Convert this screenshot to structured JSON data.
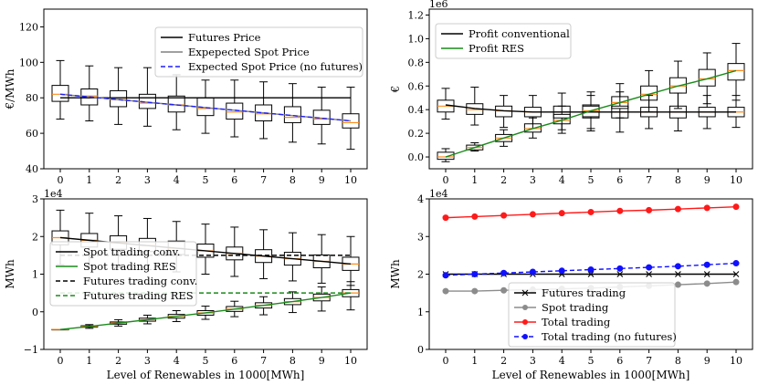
{
  "figure_xlabel": "Level of Renewables in 1000[MWh]",
  "chart_data": [
    {
      "id": "prices",
      "type": "line+box",
      "ylabel": "€/MWh",
      "exponent": "",
      "ylim": [
        40,
        130
      ],
      "yticks": [
        40,
        60,
        80,
        100,
        120
      ],
      "ytick_labels": [
        "40",
        "60",
        "80",
        "100",
        "120"
      ],
      "x": [
        0,
        1,
        2,
        3,
        4,
        5,
        6,
        7,
        8,
        9,
        10
      ],
      "legend_pos": "top-right",
      "series": [
        {
          "name": "Futures Price",
          "color": "#000000",
          "style": "solid",
          "values": [
            80,
            80,
            80,
            80,
            80,
            80,
            80,
            80,
            80,
            80,
            80
          ]
        },
        {
          "name": "Expepected Spot Price",
          "color": "#808080",
          "style": "solid",
          "values": [
            82,
            80.5,
            79,
            77.5,
            76,
            74.5,
            73,
            71.5,
            70,
            68.5,
            67
          ]
        },
        {
          "name": "Expected Spot Price (no futures)",
          "color": "#1f1fff",
          "style": "dashed",
          "values": [
            82,
            80.5,
            79,
            77.5,
            76,
            74.5,
            73,
            71.5,
            70,
            68.5,
            67
          ]
        }
      ],
      "boxes": [
        {
          "x": 0,
          "lw": 68,
          "q1": 78,
          "med": 82,
          "q3": 87,
          "uw": 101
        },
        {
          "x": 1,
          "lw": 67,
          "q1": 76,
          "med": 81,
          "q3": 85,
          "uw": 98
        },
        {
          "x": 2,
          "lw": 65,
          "q1": 75,
          "med": 79,
          "q3": 84,
          "uw": 97
        },
        {
          "x": 3,
          "lw": 64,
          "q1": 74,
          "med": 77,
          "q3": 82,
          "uw": 97
        },
        {
          "x": 4,
          "lw": 62,
          "q1": 72,
          "med": 76,
          "q3": 81,
          "uw": 93
        },
        {
          "x": 5,
          "lw": 60,
          "q1": 70,
          "med": 74,
          "q3": 80,
          "uw": 90
        },
        {
          "x": 6,
          "lw": 58,
          "q1": 68,
          "med": 72,
          "q3": 77,
          "uw": 90
        },
        {
          "x": 7,
          "lw": 57,
          "q1": 67,
          "med": 71,
          "q3": 76,
          "uw": 89
        },
        {
          "x": 8,
          "lw": 55,
          "q1": 66,
          "med": 69,
          "q3": 75,
          "uw": 88
        },
        {
          "x": 9,
          "lw": 54,
          "q1": 65,
          "med": 68,
          "q3": 73,
          "uw": 86
        },
        {
          "x": 10,
          "lw": 51,
          "q1": 63,
          "med": 66,
          "q3": 71,
          "uw": 86
        }
      ]
    },
    {
      "id": "profit",
      "type": "line+box",
      "ylabel": "€",
      "exponent": "1e6",
      "ylim": [
        -0.1,
        1.25
      ],
      "yticks": [
        0,
        0.2,
        0.4,
        0.6,
        0.8,
        1.0,
        1.2
      ],
      "ytick_labels": [
        "0.0",
        "0.2",
        "0.4",
        "0.6",
        "0.8",
        "1.0",
        "1.2"
      ],
      "x": [
        0,
        1,
        2,
        3,
        4,
        5,
        6,
        7,
        8,
        9,
        10
      ],
      "legend_pos": "top-left",
      "series": [
        {
          "name": "Profit conventional",
          "color": "#000000",
          "style": "solid",
          "values": [
            0.44,
            0.41,
            0.39,
            0.38,
            0.38,
            0.38,
            0.38,
            0.38,
            0.38,
            0.38,
            0.38
          ]
        },
        {
          "name": "Profit RES",
          "color": "#1a8a1a",
          "style": "solid",
          "values": [
            0.0,
            0.08,
            0.16,
            0.24,
            0.31,
            0.39,
            0.46,
            0.53,
            0.6,
            0.66,
            0.73
          ]
        }
      ],
      "boxes": [
        {
          "x": 0,
          "lw": 0.32,
          "q1": 0.38,
          "med": 0.43,
          "q3": 0.48,
          "uw": 0.58
        },
        {
          "x": 1,
          "lw": 0.27,
          "q1": 0.36,
          "med": 0.4,
          "q3": 0.45,
          "uw": 0.59
        },
        {
          "x": 2,
          "lw": 0.25,
          "q1": 0.34,
          "med": 0.39,
          "q3": 0.43,
          "uw": 0.52
        },
        {
          "x": 3,
          "lw": 0.24,
          "q1": 0.34,
          "med": 0.38,
          "q3": 0.42,
          "uw": 0.52
        },
        {
          "x": 4,
          "lw": 0.23,
          "q1": 0.33,
          "med": 0.38,
          "q3": 0.43,
          "uw": 0.54
        },
        {
          "x": 5,
          "lw": 0.22,
          "q1": 0.33,
          "med": 0.38,
          "q3": 0.43,
          "uw": 0.55
        },
        {
          "x": 6,
          "lw": 0.21,
          "q1": 0.33,
          "med": 0.38,
          "q3": 0.43,
          "uw": 0.55
        },
        {
          "x": 7,
          "lw": 0.24,
          "q1": 0.34,
          "med": 0.38,
          "q3": 0.42,
          "uw": 0.52
        },
        {
          "x": 8,
          "lw": 0.22,
          "q1": 0.33,
          "med": 0.38,
          "q3": 0.43,
          "uw": 0.54
        },
        {
          "x": 9,
          "lw": 0.24,
          "q1": 0.34,
          "med": 0.38,
          "q3": 0.42,
          "uw": 0.52
        },
        {
          "x": 10,
          "lw": 0.25,
          "q1": 0.34,
          "med": 0.38,
          "q3": 0.42,
          "uw": 0.52
        },
        {
          "x": 0,
          "lw": -0.04,
          "q1": -0.02,
          "med": 0.0,
          "q3": 0.04,
          "uw": 0.07
        },
        {
          "x": 1,
          "lw": 0.05,
          "q1": 0.06,
          "med": 0.08,
          "q3": 0.1,
          "uw": 0.12
        },
        {
          "x": 2,
          "lw": 0.09,
          "q1": 0.13,
          "med": 0.16,
          "q3": 0.19,
          "uw": 0.23
        },
        {
          "x": 3,
          "lw": 0.16,
          "q1": 0.21,
          "med": 0.24,
          "q3": 0.28,
          "uw": 0.33
        },
        {
          "x": 4,
          "lw": 0.2,
          "q1": 0.28,
          "med": 0.31,
          "q3": 0.36,
          "uw": 0.43
        },
        {
          "x": 5,
          "lw": 0.24,
          "q1": 0.34,
          "med": 0.39,
          "q3": 0.44,
          "uw": 0.52
        },
        {
          "x": 6,
          "lw": 0.33,
          "q1": 0.41,
          "med": 0.46,
          "q3": 0.51,
          "uw": 0.62
        },
        {
          "x": 7,
          "lw": 0.38,
          "q1": 0.48,
          "med": 0.53,
          "q3": 0.6,
          "uw": 0.73
        },
        {
          "x": 8,
          "lw": 0.41,
          "q1": 0.54,
          "med": 0.6,
          "q3": 0.67,
          "uw": 0.81
        },
        {
          "x": 9,
          "lw": 0.45,
          "q1": 0.6,
          "med": 0.66,
          "q3": 0.74,
          "uw": 0.88
        },
        {
          "x": 10,
          "lw": 0.48,
          "q1": 0.65,
          "med": 0.73,
          "q3": 0.79,
          "uw": 0.96
        }
      ]
    },
    {
      "id": "trading",
      "type": "line+box",
      "ylabel": "MWh",
      "exponent": "1e4",
      "ylim": [
        -1,
        3
      ],
      "yticks": [
        -1,
        0,
        1,
        2,
        3
      ],
      "ytick_labels": [
        "−1",
        "0",
        "1",
        "2",
        "3"
      ],
      "x": [
        0,
        1,
        2,
        3,
        4,
        5,
        6,
        7,
        8,
        9,
        10
      ],
      "legend_pos": "center-left",
      "series": [
        {
          "name": "Spot trading conv.",
          "color": "#000000",
          "style": "solid",
          "values": [
            1.97,
            1.9,
            1.83,
            1.76,
            1.69,
            1.62,
            1.55,
            1.48,
            1.41,
            1.34,
            1.27
          ]
        },
        {
          "name": "Spot trading RES",
          "color": "#1a8a1a",
          "style": "solid",
          "values": [
            -0.47,
            -0.39,
            -0.3,
            -0.21,
            -0.12,
            -0.03,
            0.07,
            0.17,
            0.27,
            0.38,
            0.5
          ]
        },
        {
          "name": "Futures trading conv.",
          "color": "#000000",
          "style": "dashed",
          "values": [
            1.5,
            1.5,
            1.5,
            1.5,
            1.5,
            1.5,
            1.5,
            1.5,
            1.5,
            1.5,
            1.5
          ]
        },
        {
          "name": "Futures trading RES",
          "color": "#1a8a1a",
          "style": "dashed",
          "values": [
            0.5,
            0.5,
            0.5,
            0.5,
            0.5,
            0.5,
            0.5,
            0.5,
            0.5,
            0.5,
            0.5
          ]
        }
      ],
      "boxes": [
        {
          "x": 0,
          "lw": 1.25,
          "q1": 1.78,
          "med": 1.97,
          "q3": 2.15,
          "uw": 2.7
        },
        {
          "x": 1,
          "lw": 1.22,
          "q1": 1.72,
          "med": 1.9,
          "q3": 2.08,
          "uw": 2.62
        },
        {
          "x": 2,
          "lw": 1.18,
          "q1": 1.66,
          "med": 1.83,
          "q3": 2.02,
          "uw": 2.55
        },
        {
          "x": 3,
          "lw": 1.12,
          "q1": 1.6,
          "med": 1.76,
          "q3": 1.95,
          "uw": 2.48
        },
        {
          "x": 4,
          "lw": 1.06,
          "q1": 1.52,
          "med": 1.69,
          "q3": 1.88,
          "uw": 2.4
        },
        {
          "x": 5,
          "lw": 1.0,
          "q1": 1.45,
          "med": 1.62,
          "q3": 1.8,
          "uw": 2.33
        },
        {
          "x": 6,
          "lw": 0.94,
          "q1": 1.38,
          "med": 1.55,
          "q3": 1.72,
          "uw": 2.25
        },
        {
          "x": 7,
          "lw": 0.88,
          "q1": 1.31,
          "med": 1.48,
          "q3": 1.65,
          "uw": 2.18
        },
        {
          "x": 8,
          "lw": 0.82,
          "q1": 1.24,
          "med": 1.41,
          "q3": 1.58,
          "uw": 2.1
        },
        {
          "x": 9,
          "lw": 0.76,
          "q1": 1.17,
          "med": 1.34,
          "q3": 1.51,
          "uw": 2.05
        },
        {
          "x": 10,
          "lw": 0.7,
          "q1": 1.1,
          "med": 1.27,
          "q3": 1.45,
          "uw": 2.0
        },
        {
          "x": 0,
          "lw": -0.47,
          "q1": -0.47,
          "med": -0.47,
          "q3": -0.47,
          "uw": -0.47
        },
        {
          "x": 1,
          "lw": -0.44,
          "q1": -0.41,
          "med": -0.39,
          "q3": -0.37,
          "uw": -0.34
        },
        {
          "x": 2,
          "lw": -0.38,
          "q1": -0.33,
          "med": -0.3,
          "q3": -0.27,
          "uw": -0.21
        },
        {
          "x": 3,
          "lw": -0.32,
          "q1": -0.25,
          "med": -0.21,
          "q3": -0.17,
          "uw": -0.09
        },
        {
          "x": 4,
          "lw": -0.26,
          "q1": -0.17,
          "med": -0.12,
          "q3": -0.07,
          "uw": 0.03
        },
        {
          "x": 5,
          "lw": -0.2,
          "q1": -0.09,
          "med": -0.03,
          "q3": 0.03,
          "uw": 0.15
        },
        {
          "x": 6,
          "lw": -0.13,
          "q1": 0.01,
          "med": 0.07,
          "q3": 0.14,
          "uw": 0.28
        },
        {
          "x": 7,
          "lw": -0.08,
          "q1": 0.1,
          "med": 0.17,
          "q3": 0.24,
          "uw": 0.4
        },
        {
          "x": 8,
          "lw": -0.02,
          "q1": 0.19,
          "med": 0.27,
          "q3": 0.35,
          "uw": 0.53
        },
        {
          "x": 9,
          "lw": 0.02,
          "q1": 0.29,
          "med": 0.38,
          "q3": 0.47,
          "uw": 0.66
        },
        {
          "x": 10,
          "lw": 0.05,
          "q1": 0.4,
          "med": 0.5,
          "q3": 0.59,
          "uw": 0.8
        }
      ]
    },
    {
      "id": "totals",
      "type": "line",
      "ylabel": "MWh",
      "exponent": "1e4",
      "ylim": [
        0,
        4
      ],
      "yticks": [
        0,
        1,
        2,
        3,
        4
      ],
      "ytick_labels": [
        "0",
        "1",
        "2",
        "3",
        "4"
      ],
      "x": [
        0,
        1,
        2,
        3,
        4,
        5,
        6,
        7,
        8,
        9,
        10
      ],
      "legend_pos": "lower-center",
      "series": [
        {
          "name": "Futures trading",
          "color": "#000000",
          "style": "solid",
          "marker": "x",
          "values": [
            2.0,
            2.0,
            2.0,
            2.0,
            2.0,
            2.0,
            2.0,
            2.0,
            2.0,
            2.0,
            2.0
          ]
        },
        {
          "name": "Spot trading",
          "color": "#8c8c8c",
          "style": "solid",
          "marker": "o",
          "values": [
            1.55,
            1.55,
            1.57,
            1.59,
            1.61,
            1.63,
            1.66,
            1.69,
            1.72,
            1.75,
            1.79
          ]
        },
        {
          "name": "Total trading",
          "color": "#ff1a1a",
          "style": "solid",
          "marker": "o",
          "values": [
            3.5,
            3.53,
            3.56,
            3.59,
            3.62,
            3.65,
            3.68,
            3.7,
            3.73,
            3.76,
            3.79
          ]
        },
        {
          "name": "Total trading (no futures)",
          "color": "#1010ff",
          "style": "dashed",
          "marker": "o",
          "values": [
            1.97,
            2.0,
            2.03,
            2.06,
            2.09,
            2.12,
            2.15,
            2.18,
            2.21,
            2.25,
            2.29
          ]
        }
      ],
      "boxes": []
    }
  ]
}
